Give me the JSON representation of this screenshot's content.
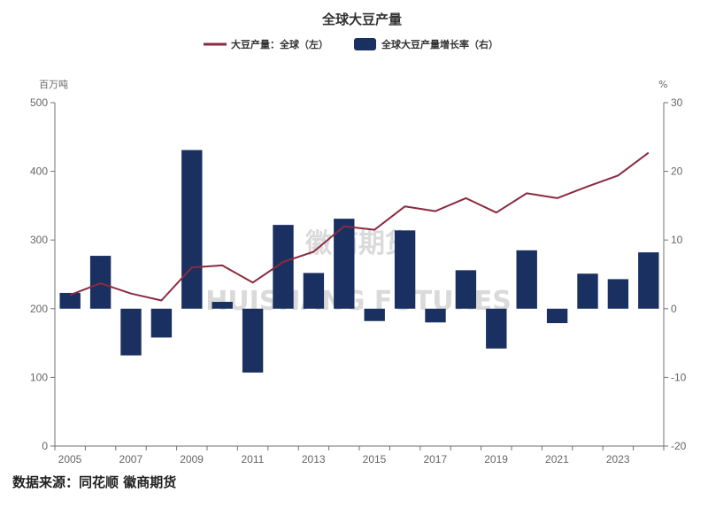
{
  "chart_data": {
    "type": "bar+line",
    "title": "全球大豆产量",
    "categories": [
      2005,
      2006,
      2007,
      2008,
      2009,
      2010,
      2011,
      2012,
      2013,
      2014,
      2015,
      2016,
      2017,
      2018,
      2019,
      2020,
      2021,
      2022,
      2023,
      2024
    ],
    "xtick_labels": [
      "2005",
      "2007",
      "2009",
      "2011",
      "2013",
      "2015",
      "2017",
      "2019",
      "2021",
      "2023"
    ],
    "series": [
      {
        "name": "大豆产量：全球（左）",
        "kind": "line",
        "axis": "left",
        "color": "#8b2a3f",
        "values": [
          220,
          237,
          222,
          212,
          260,
          263,
          238,
          268,
          283,
          320,
          315,
          349,
          342,
          361,
          340,
          368,
          361,
          378,
          394,
          427
        ]
      },
      {
        "name": "全球大豆产量增长率（右）",
        "kind": "bar",
        "axis": "right",
        "color": "#1a3060",
        "values": [
          2.3,
          7.7,
          -6.8,
          -4.2,
          23.1,
          1.0,
          -9.3,
          12.2,
          5.2,
          13.1,
          -1.8,
          11.4,
          -2.0,
          5.6,
          -5.8,
          8.5,
          -2.1,
          5.1,
          4.3,
          8.2
        ]
      }
    ],
    "y_left": {
      "unit": "百万吨",
      "min": 0,
      "max": 500,
      "ticks": [
        0,
        100,
        200,
        300,
        400,
        500
      ]
    },
    "y_right": {
      "unit": "%",
      "min": -20,
      "max": 30,
      "ticks": [
        -20,
        -10,
        0,
        10,
        20,
        30
      ]
    },
    "legend_position": "top-center",
    "grid": false
  },
  "watermark": {
    "line1": "徽商期货",
    "line2": "HUISHANG FUTURES"
  },
  "source": "数据来源：同花顺 徽商期货"
}
